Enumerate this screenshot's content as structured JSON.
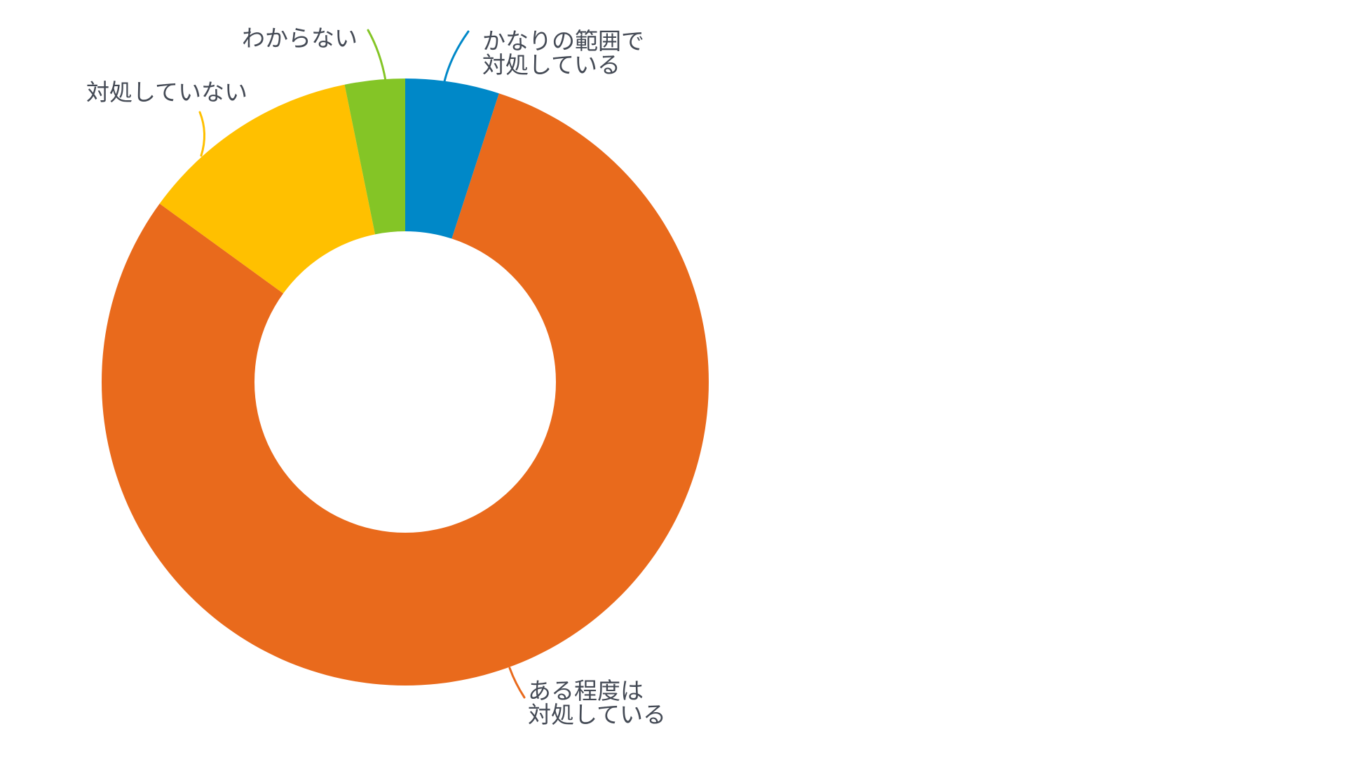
{
  "chart_data": {
    "type": "pie",
    "style": "donut",
    "title": "",
    "slices": [
      {
        "label": [
          "かなりの範囲で",
          "対処している"
        ],
        "value": 5.0,
        "color": "#0088c8"
      },
      {
        "label": [
          "ある程度は",
          "対処している"
        ],
        "value": 80.0,
        "color": "#e96a1c"
      },
      {
        "label": [
          "対処していない"
        ],
        "value": 11.8,
        "color": "#ffc000"
      },
      {
        "label": [
          "わからない"
        ],
        "value": 3.2,
        "color": "#84c526"
      }
    ],
    "start": "top",
    "direction": "clockwise",
    "legend": "none"
  }
}
